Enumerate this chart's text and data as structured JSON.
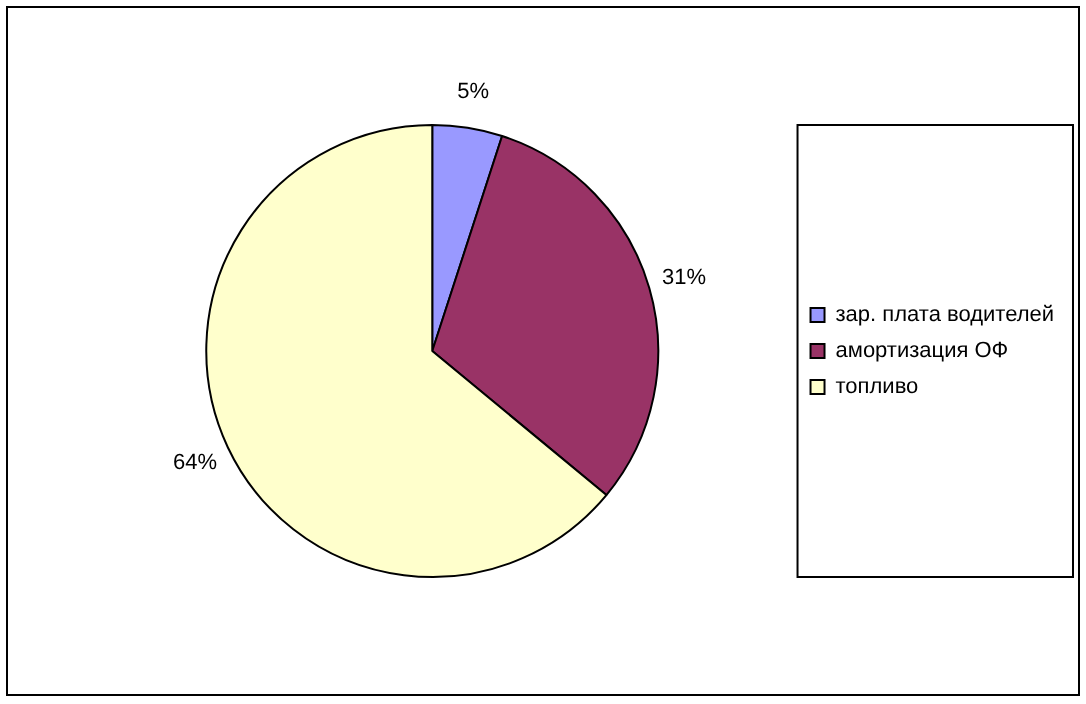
{
  "chart_data": {
    "type": "pie",
    "categories": [
      "зар. плата водителей",
      "амортизация ОФ",
      "топливо"
    ],
    "values": [
      5,
      31,
      64
    ],
    "colors": [
      "#9999ff",
      "#993366",
      "#ffffcc"
    ],
    "value_labels": [
      "5%",
      "31%",
      "64%"
    ],
    "legend": "right"
  }
}
